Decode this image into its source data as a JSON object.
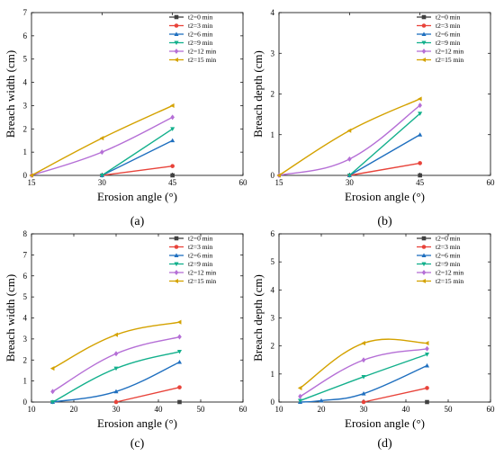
{
  "chart_data": [
    {
      "type": "line",
      "caption": "(a)",
      "xlabel": "Erosion angle (°)",
      "ylabel": "Breach width (cm)",
      "xlim": [
        15,
        60
      ],
      "ylim": [
        0,
        7
      ],
      "xticks": [
        "15",
        "30",
        "45",
        "60"
      ],
      "yticks": [
        "0",
        "1",
        "2",
        "3",
        "4",
        "5",
        "6",
        "7"
      ],
      "legend_position": "top-right",
      "series": [
        {
          "name": "t2=0 min",
          "color": "#404040",
          "marker": "square",
          "x": [
            45
          ],
          "y": [
            0
          ]
        },
        {
          "name": "t2=3 min",
          "color": "#e8433a",
          "marker": "circle",
          "x": [
            30,
            45
          ],
          "y": [
            0,
            0.4
          ]
        },
        {
          "name": "t2=6 min",
          "color": "#1f6fbf",
          "marker": "triangle",
          "x": [
            30,
            45
          ],
          "y": [
            0,
            1.5
          ]
        },
        {
          "name": "t2=9 min",
          "color": "#13b08c",
          "marker": "triangle-down",
          "x": [
            30,
            45
          ],
          "y": [
            0,
            2.0
          ]
        },
        {
          "name": "t2=12 min",
          "color": "#b56fd6",
          "marker": "diamond",
          "x": [
            15,
            30,
            45
          ],
          "y": [
            0,
            1.0,
            2.5
          ]
        },
        {
          "name": "t2=15 min",
          "color": "#d4a200",
          "marker": "triangle-left",
          "x": [
            15,
            30,
            45
          ],
          "y": [
            0,
            1.6,
            3.0
          ]
        }
      ]
    },
    {
      "type": "line",
      "caption": "(b)",
      "xlabel": "Erosion angle (°)",
      "ylabel": "Breach depth (cm)",
      "xlim": [
        15,
        60
      ],
      "ylim": [
        0,
        4
      ],
      "xticks": [
        "15",
        "30",
        "45",
        "60"
      ],
      "yticks": [
        "0",
        "1",
        "2",
        "3",
        "4"
      ],
      "legend_position": "top-right",
      "series": [
        {
          "name": "t2=0 min",
          "color": "#404040",
          "marker": "square",
          "x": [
            45
          ],
          "y": [
            0
          ]
        },
        {
          "name": "t2=3 min",
          "color": "#e8433a",
          "marker": "circle",
          "x": [
            30,
            45
          ],
          "y": [
            0,
            0.3
          ]
        },
        {
          "name": "t2=6 min",
          "color": "#1f6fbf",
          "marker": "triangle",
          "x": [
            30,
            45
          ],
          "y": [
            0,
            1.0
          ]
        },
        {
          "name": "t2=9 min",
          "color": "#13b08c",
          "marker": "triangle-down",
          "x": [
            30,
            45
          ],
          "y": [
            0,
            1.52
          ]
        },
        {
          "name": "t2=12 min",
          "color": "#b56fd6",
          "marker": "diamond",
          "x": [
            15,
            30,
            45
          ],
          "y": [
            0,
            0.4,
            1.72
          ]
        },
        {
          "name": "t2=15 min",
          "color": "#d4a200",
          "marker": "triangle-left",
          "x": [
            15,
            30,
            45
          ],
          "y": [
            0,
            1.1,
            1.88
          ]
        }
      ]
    },
    {
      "type": "line",
      "caption": "(c)",
      "xlabel": "Erosion angle (°)",
      "ylabel": "Breach width (cm)",
      "xlim": [
        10,
        60
      ],
      "ylim": [
        0,
        8
      ],
      "xticks": [
        "10",
        "20",
        "30",
        "40",
        "50",
        "60"
      ],
      "yticks": [
        "0",
        "1",
        "2",
        "3",
        "4",
        "5",
        "6",
        "7",
        "8"
      ],
      "legend_position": "top-right",
      "series": [
        {
          "name": "t2=0 min",
          "color": "#404040",
          "marker": "square",
          "x": [
            45
          ],
          "y": [
            0
          ]
        },
        {
          "name": "t2=3 min",
          "color": "#e8433a",
          "marker": "circle",
          "x": [
            30,
            45
          ],
          "y": [
            0,
            0.7
          ]
        },
        {
          "name": "t2=6 min",
          "color": "#1f6fbf",
          "marker": "triangle",
          "x": [
            15,
            30,
            45
          ],
          "y": [
            0,
            0.5,
            1.9
          ]
        },
        {
          "name": "t2=9 min",
          "color": "#13b08c",
          "marker": "triangle-down",
          "x": [
            15,
            30,
            45
          ],
          "y": [
            0,
            1.6,
            2.4
          ]
        },
        {
          "name": "t2=12 min",
          "color": "#b56fd6",
          "marker": "diamond",
          "x": [
            15,
            30,
            45
          ],
          "y": [
            0.5,
            2.3,
            3.1
          ]
        },
        {
          "name": "t2=15 min",
          "color": "#d4a200",
          "marker": "triangle-left",
          "x": [
            15,
            30,
            45
          ],
          "y": [
            1.6,
            3.2,
            3.8
          ]
        }
      ]
    },
    {
      "type": "line",
      "caption": "(d)",
      "xlabel": "Erosion angle (°)",
      "ylabel": "Breach depth (cm)",
      "xlim": [
        10,
        60
      ],
      "ylim": [
        0,
        6
      ],
      "xticks": [
        "10",
        "20",
        "30",
        "40",
        "50",
        "60"
      ],
      "yticks": [
        "0",
        "1",
        "2",
        "3",
        "4",
        "5",
        "6"
      ],
      "legend_position": "top-right",
      "series": [
        {
          "name": "t2=0 min",
          "color": "#404040",
          "marker": "square",
          "x": [
            45
          ],
          "y": [
            0
          ]
        },
        {
          "name": "t2=3 min",
          "color": "#e8433a",
          "marker": "circle",
          "x": [
            30,
            45
          ],
          "y": [
            0,
            0.5
          ]
        },
        {
          "name": "t2=6 min",
          "color": "#1f6fbf",
          "marker": "triangle",
          "x": [
            15,
            20,
            30,
            45
          ],
          "y": [
            0,
            0.05,
            0.3,
            1.3
          ]
        },
        {
          "name": "t2=9 min",
          "color": "#13b08c",
          "marker": "triangle-down",
          "x": [
            15,
            30,
            45
          ],
          "y": [
            0.05,
            0.9,
            1.7
          ]
        },
        {
          "name": "t2=12 min",
          "color": "#b56fd6",
          "marker": "diamond",
          "x": [
            15,
            30,
            45
          ],
          "y": [
            0.2,
            1.5,
            1.9
          ]
        },
        {
          "name": "t2=15 min",
          "color": "#d4a200",
          "marker": "triangle-left",
          "x": [
            15,
            30,
            45
          ],
          "y": [
            0.5,
            2.1,
            2.1
          ]
        }
      ]
    }
  ]
}
